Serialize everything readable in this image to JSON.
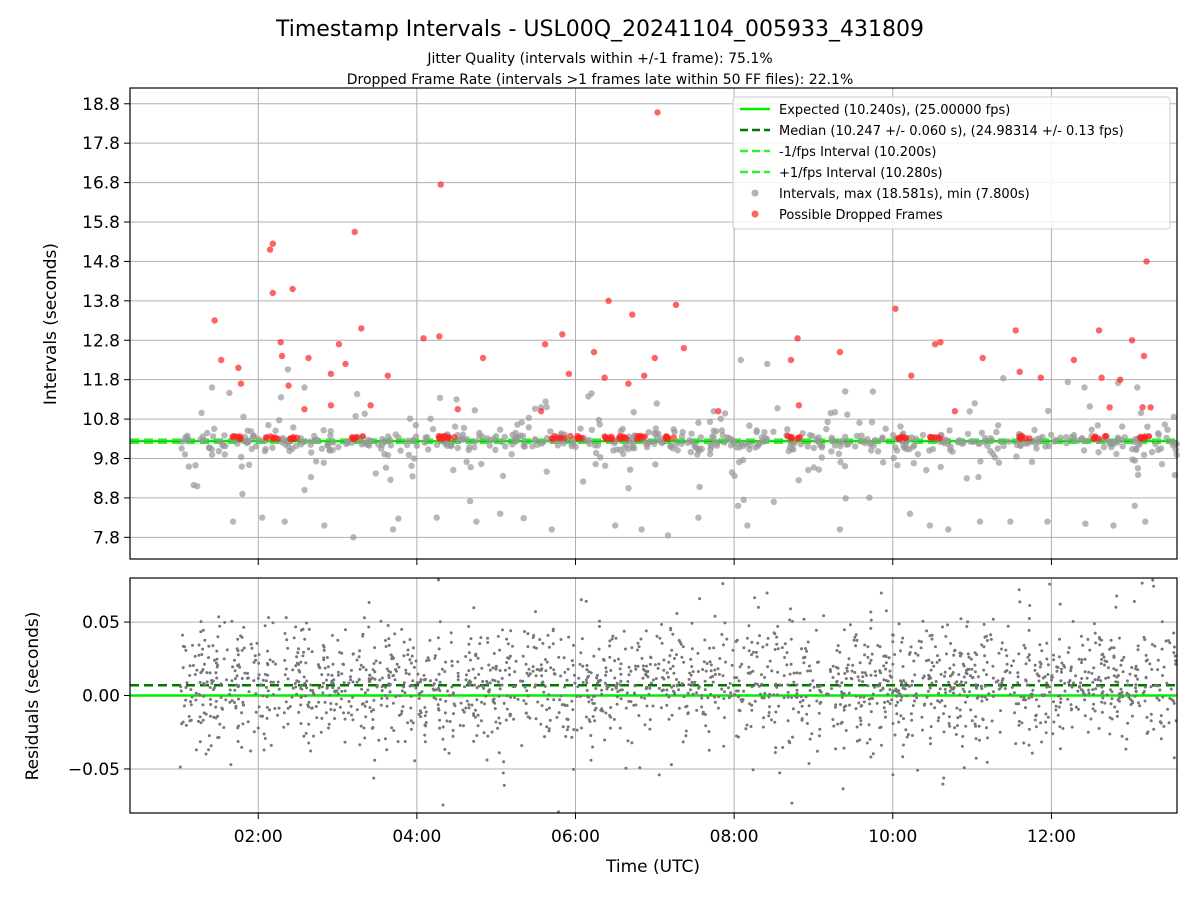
{
  "figure": {
    "title": "Timestamp Intervals - USL00Q_20241104_005933_431809",
    "subtitle_line1": "Jitter Quality (intervals within +/-1 frame): 75.1%",
    "subtitle_line2": "Dropped Frame Rate (intervals >1 frames late within 50 FF files): 22.1%"
  },
  "colors": {
    "expected": "#00ee00",
    "median": "#007700",
    "fps_band": "#33ee33",
    "intervals": "#999999",
    "dropped": "#ff2222",
    "residuals": "#777777",
    "grid": "#b0b0b0"
  },
  "chart_data": [
    {
      "type": "scatter",
      "ylabel": "Intervals (seconds)",
      "xlabel": "",
      "x_axis": "time (UTC)",
      "xlim": [
        "00:23",
        "13:35"
      ],
      "ylim": [
        7.25,
        19.2
      ],
      "yticks": [
        "7.8",
        "8.8",
        "9.8",
        "10.8",
        "11.8",
        "12.8",
        "13.8",
        "14.8",
        "15.8",
        "16.8",
        "17.8",
        "18.8"
      ],
      "grid": true,
      "legend_placement": "upper right",
      "lines": [
        {
          "name": "Expected (10.240s), (25.00000 fps)",
          "y": 10.24,
          "style": "solid"
        },
        {
          "name": "Median (10.247 +/- 0.060 s), (24.98314 +/- 0.13 fps)",
          "y": 10.247,
          "style": "dashed"
        },
        {
          "name": "-1/fps Interval (10.200s)",
          "y": 10.2,
          "style": "dashed"
        },
        {
          "name": "+1/fps Interval (10.280s)",
          "y": 10.28,
          "style": "dashed"
        }
      ],
      "series": [
        {
          "name": "Intervals, max (18.581s), min (7.800s)",
          "x_range": [
            "01:00",
            "13:35"
          ],
          "points": [
            [
              "01:48",
              8.9
            ],
            [
              "02:03",
              8.3
            ],
            [
              "01:41",
              8.2
            ],
            [
              "02:20",
              8.2
            ],
            [
              "02:35",
              9.0
            ],
            [
              "02:50",
              8.1
            ],
            [
              "03:12",
              7.8
            ],
            [
              "03:42",
              8.0
            ],
            [
              "04:15",
              8.3
            ],
            [
              "04:45",
              8.2
            ],
            [
              "05:03",
              8.4
            ],
            [
              "05:42",
              8.0
            ],
            [
              "06:30",
              8.1
            ],
            [
              "06:50",
              8.0
            ],
            [
              "07:10",
              7.85
            ],
            [
              "07:33",
              8.3
            ],
            [
              "08:03",
              8.6
            ],
            [
              "08:10",
              8.1
            ],
            [
              "08:30",
              8.7
            ],
            [
              "09:20",
              8.0
            ],
            [
              "10:13",
              8.4
            ],
            [
              "10:28",
              8.1
            ],
            [
              "10:42",
              8.0
            ],
            [
              "11:06",
              8.2
            ],
            [
              "11:29",
              8.2
            ],
            [
              "11:57",
              8.2
            ],
            [
              "12:47",
              8.1
            ],
            [
              "13:03",
              8.6
            ],
            [
              "13:11",
              8.2
            ],
            [
              "08:05",
              12.3
            ],
            [
              "08:25",
              12.2
            ],
            [
              "09:24",
              11.5
            ],
            [
              "05:34",
              11.1
            ],
            [
              "04:30",
              11.3
            ],
            [
              "11:02",
              11.2
            ],
            [
              "01:25",
              11.6
            ],
            [
              "02:35",
              11.6
            ],
            [
              "13:05",
              11.6
            ],
            [
              "12:25",
              11.6
            ],
            [
              "09:45",
              11.5
            ]
          ]
        },
        {
          "name": "Possible Dropped Frames",
          "points": [
            [
              "07:02",
              18.58
            ],
            [
              "04:18",
              16.75
            ],
            [
              "02:09",
              15.1
            ],
            [
              "02:11",
              15.25
            ],
            [
              "03:13",
              15.55
            ],
            [
              "13:12",
              14.8
            ],
            [
              "02:11",
              14.0
            ],
            [
              "02:26",
              14.1
            ],
            [
              "06:25",
              13.8
            ],
            [
              "07:16",
              13.7
            ],
            [
              "10:02",
              13.6
            ],
            [
              "06:43",
              13.45
            ],
            [
              "01:27",
              13.3
            ],
            [
              "03:18",
              13.1
            ],
            [
              "11:33",
              13.05
            ],
            [
              "12:36",
              13.05
            ],
            [
              "04:05",
              12.85
            ],
            [
              "04:17",
              12.9
            ],
            [
              "05:50",
              12.95
            ],
            [
              "08:48",
              12.85
            ],
            [
              "02:17",
              12.75
            ],
            [
              "03:01",
              12.7
            ],
            [
              "05:37",
              12.7
            ],
            [
              "10:32",
              12.7
            ],
            [
              "10:36",
              12.75
            ],
            [
              "07:22",
              12.6
            ],
            [
              "06:14",
              12.5
            ],
            [
              "09:20",
              12.5
            ],
            [
              "13:01",
              12.8
            ],
            [
              "01:32",
              12.3
            ],
            [
              "02:18",
              12.4
            ],
            [
              "02:38",
              12.35
            ],
            [
              "04:50",
              12.35
            ],
            [
              "12:17",
              12.3
            ],
            [
              "11:08",
              12.35
            ],
            [
              "13:10",
              12.4
            ],
            [
              "08:43",
              12.3
            ],
            [
              "01:45",
              12.1
            ],
            [
              "03:06",
              12.2
            ],
            [
              "07:00",
              12.35
            ],
            [
              "10:14",
              11.9
            ],
            [
              "11:36",
              12.0
            ],
            [
              "11:52",
              11.85
            ],
            [
              "06:52",
              11.9
            ],
            [
              "02:55",
              11.95
            ],
            [
              "01:47",
              11.7
            ],
            [
              "02:23",
              11.65
            ],
            [
              "03:38",
              11.9
            ],
            [
              "05:55",
              11.95
            ],
            [
              "06:40",
              11.7
            ],
            [
              "06:22",
              11.85
            ],
            [
              "12:38",
              11.85
            ],
            [
              "12:52",
              11.8
            ],
            [
              "02:35",
              11.05
            ],
            [
              "02:55",
              11.15
            ],
            [
              "03:25",
              11.15
            ],
            [
              "05:34",
              11.0
            ],
            [
              "07:48",
              11.0
            ],
            [
              "08:49",
              11.15
            ],
            [
              "10:47",
              11.0
            ],
            [
              "13:09",
              11.1
            ],
            [
              "13:15",
              11.1
            ],
            [
              "04:31",
              11.05
            ],
            [
              "12:44",
              11.1
            ]
          ]
        }
      ]
    },
    {
      "type": "scatter",
      "ylabel": "Residuals (seconds)",
      "xlabel": "Time (UTC)",
      "xlim": [
        "00:23",
        "13:35"
      ],
      "ylim": [
        -0.08,
        0.08
      ],
      "yticks": [
        "−0.05",
        "0.00",
        "0.05"
      ],
      "xticks": [
        "02:00",
        "04:00",
        "06:00",
        "08:00",
        "10:00",
        "12:00"
      ],
      "grid": true,
      "lines": [
        {
          "name": "expected",
          "y": 0.0,
          "style": "solid"
        },
        {
          "name": "median",
          "y": 0.007,
          "style": "dashed"
        }
      ],
      "series": [
        {
          "name": "residuals",
          "x_range": [
            "01:00",
            "13:35"
          ],
          "y_range": [
            -0.08,
            0.08
          ],
          "distribution": "dense band roughly -0.03 to 0.05, sparse outliers to ±0.08",
          "point_count": 2000
        }
      ]
    }
  ]
}
